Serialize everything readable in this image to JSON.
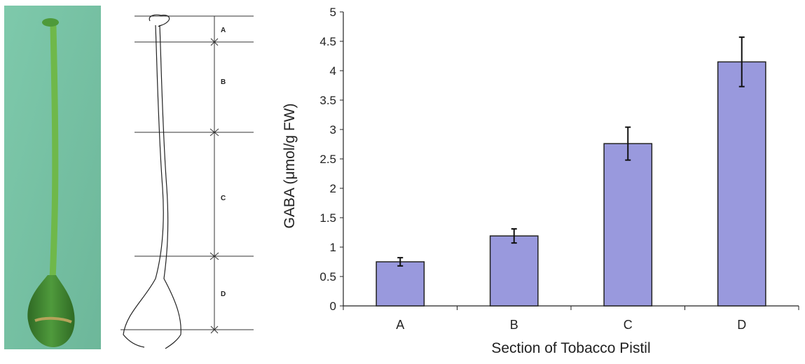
{
  "colors": {
    "bar_fill": "#9999dd",
    "bar_stroke": "#222222",
    "photo_background": "#79c3a5",
    "stem": "#6fb84a",
    "ovary": "#3d7a2c"
  },
  "diagram": {
    "section_labels": [
      "A",
      "B",
      "C",
      "D"
    ]
  },
  "chart_data": {
    "type": "bar",
    "categories": [
      "A",
      "B",
      "C",
      "D"
    ],
    "values": [
      0.75,
      1.19,
      2.76,
      4.15
    ],
    "errors": [
      0.07,
      0.12,
      0.28,
      0.42
    ],
    "xlabel": "Section of Tobacco Pistil",
    "ylabel": "GABA (μmol/g FW)",
    "ylim": [
      0,
      5
    ],
    "yticks": [
      "0",
      "0.5",
      "1",
      "1.5",
      "2",
      "2.5",
      "3",
      "3.5",
      "4",
      "4.5",
      "5"
    ],
    "grid": false,
    "legend": "none"
  }
}
